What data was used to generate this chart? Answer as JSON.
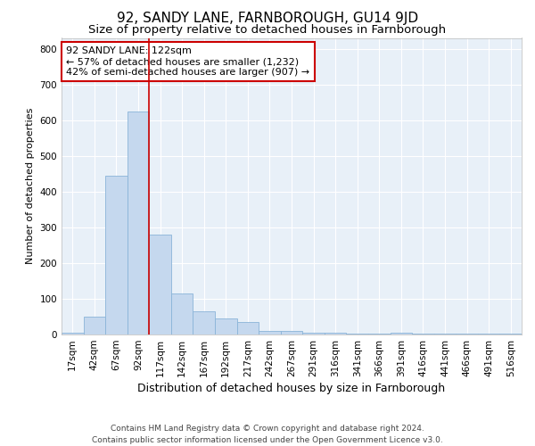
{
  "title": "92, SANDY LANE, FARNBOROUGH, GU14 9JD",
  "subtitle": "Size of property relative to detached houses in Farnborough",
  "xlabel": "Distribution of detached houses by size in Farnborough",
  "ylabel": "Number of detached properties",
  "bar_color": "#c5d8ee",
  "bar_edge_color": "#8ab4d8",
  "background_color": "#e8f0f8",
  "grid_color": "#ffffff",
  "annotation_box_color": "#cc0000",
  "vline_color": "#cc0000",
  "categories": [
    "17sqm",
    "42sqm",
    "67sqm",
    "92sqm",
    "117sqm",
    "142sqm",
    "167sqm",
    "192sqm",
    "217sqm",
    "242sqm",
    "267sqm",
    "291sqm",
    "316sqm",
    "341sqm",
    "366sqm",
    "391sqm",
    "416sqm",
    "441sqm",
    "466sqm",
    "491sqm",
    "516sqm"
  ],
  "values": [
    5,
    50,
    445,
    625,
    280,
    115,
    65,
    45,
    35,
    10,
    10,
    5,
    5,
    3,
    3,
    5,
    2,
    2,
    2,
    2,
    2
  ],
  "ylim": [
    0,
    830
  ],
  "yticks": [
    0,
    100,
    200,
    300,
    400,
    500,
    600,
    700,
    800
  ],
  "vline_pos": 3.5,
  "annotation_text": "92 SANDY LANE: 122sqm\n← 57% of detached houses are smaller (1,232)\n42% of semi-detached houses are larger (907) →",
  "footer": "Contains HM Land Registry data © Crown copyright and database right 2024.\nContains public sector information licensed under the Open Government Licence v3.0.",
  "title_fontsize": 11,
  "subtitle_fontsize": 9.5,
  "xlabel_fontsize": 9,
  "ylabel_fontsize": 8,
  "tick_fontsize": 7.5,
  "annotation_fontsize": 8,
  "footer_fontsize": 6.5
}
